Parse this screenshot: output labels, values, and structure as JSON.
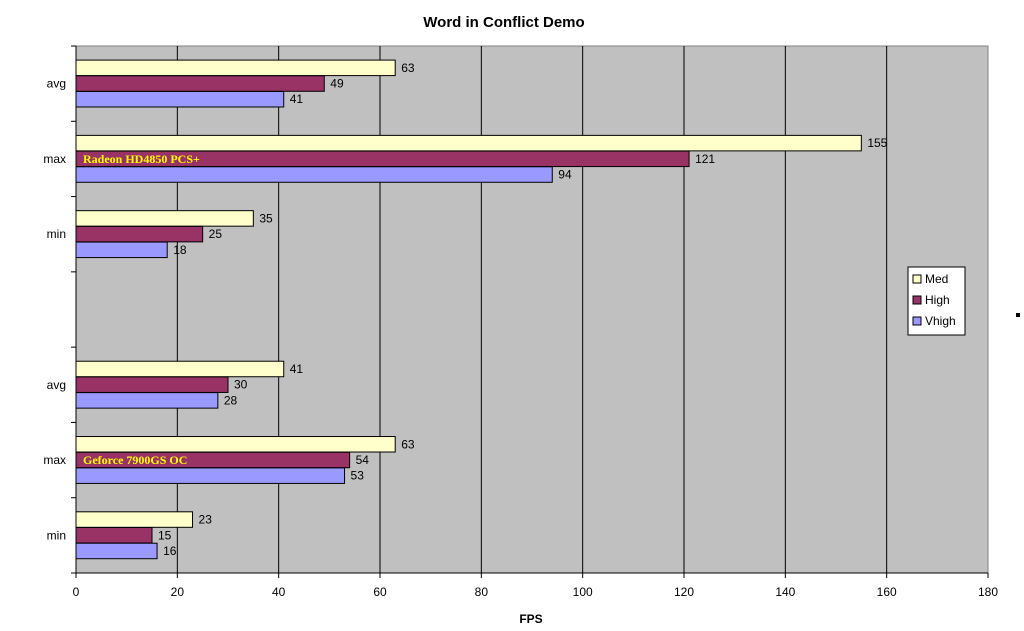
{
  "chart_data": {
    "type": "bar",
    "orientation": "horizontal",
    "title": "Word in Conflict Demo",
    "xlabel": "FPS",
    "ylabel": "",
    "xlim": [
      0,
      180
    ],
    "xticks": [
      0,
      20,
      40,
      60,
      80,
      100,
      120,
      140,
      160,
      180
    ],
    "grid": "vertical major gridlines",
    "plot_background": "#c0c0c0",
    "legend_position": "right",
    "categories": [
      "avg",
      "max",
      "min",
      "avg",
      "max",
      "min"
    ],
    "series": [
      {
        "name": "Med",
        "color": "#ffffcc",
        "values": [
          63,
          155,
          35,
          41,
          63,
          23
        ]
      },
      {
        "name": "High",
        "color": "#993366",
        "values": [
          49,
          121,
          25,
          30,
          54,
          15
        ]
      },
      {
        "name": "Vhigh",
        "color": "#9999ff",
        "values": [
          41,
          94,
          18,
          28,
          53,
          16
        ]
      }
    ],
    "annotations": [
      {
        "text": "Radeon HD4850 PCS+",
        "category_index": 1,
        "series": "High"
      },
      {
        "text": "Geforce 7900GS OC",
        "category_index": 4,
        "series": "High"
      }
    ]
  }
}
